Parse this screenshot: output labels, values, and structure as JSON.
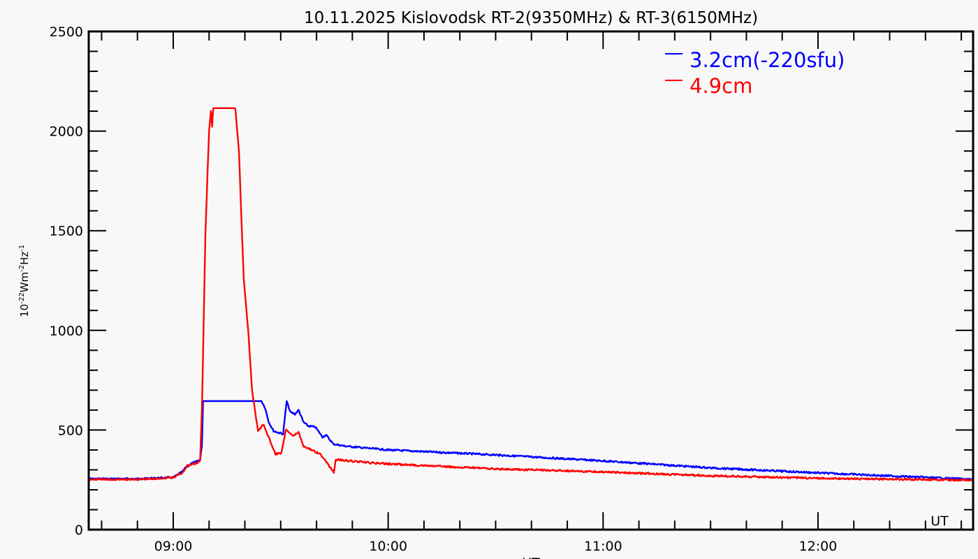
{
  "chart_data": {
    "type": "line",
    "title": "10.11.2025 Kislovodsk RT-2(9350MHz) & RT-3(6150MHz)",
    "xlabel": "UT",
    "xlabel_inner": "UT",
    "ylabel_base": "10",
    "ylabel_exp1": "-22",
    "ylabel_mid1": "Wm",
    "ylabel_exp2": "-2",
    "ylabel_mid2": "Hz",
    "ylabel_exp3": "-1",
    "xlim": [
      "08:36:24",
      "12:43:18"
    ],
    "ylim": [
      0,
      2500
    ],
    "xticks": [
      "09:00",
      "10:00",
      "11:00",
      "12:00"
    ],
    "yticks": [
      0,
      500,
      1000,
      1500,
      2000,
      2500
    ],
    "grid": false,
    "legend_placement": "top-right",
    "series": [
      {
        "name": "3.2cm(-220sfu)",
        "color": "#0000ff",
        "points": [
          [
            "08:36:24",
            255
          ],
          [
            "08:50:00",
            255
          ],
          [
            "09:00:00",
            262
          ],
          [
            "09:02:30",
            290
          ],
          [
            "09:03:30",
            312
          ],
          [
            "09:05:00",
            330
          ],
          [
            "09:06:30",
            342
          ],
          [
            "09:07:30",
            352
          ],
          [
            "09:08:00",
            420
          ],
          [
            "09:08:20",
            645
          ],
          [
            "09:24:40",
            645
          ],
          [
            "09:25:40",
            610
          ],
          [
            "09:26:40",
            540
          ],
          [
            "09:28:00",
            495
          ],
          [
            "09:29:40",
            485
          ],
          [
            "09:30:40",
            480
          ],
          [
            "09:31:40",
            645
          ],
          [
            "09:32:40",
            590
          ],
          [
            "09:34:00",
            580
          ],
          [
            "09:35:00",
            600
          ],
          [
            "09:36:20",
            540
          ],
          [
            "09:37:40",
            520
          ],
          [
            "09:39:40",
            515
          ],
          [
            "09:40:40",
            490
          ],
          [
            "09:41:40",
            465
          ],
          [
            "09:42:40",
            475
          ],
          [
            "09:44:40",
            430
          ],
          [
            "09:47:40",
            420
          ],
          [
            "09:53:30",
            410
          ],
          [
            "10:00:00",
            400
          ],
          [
            "10:30:00",
            375
          ],
          [
            "11:00:00",
            345
          ],
          [
            "11:30:00",
            310
          ],
          [
            "12:00:00",
            285
          ],
          [
            "12:43:18",
            252
          ]
        ]
      },
      {
        "name": "4.9cm",
        "color": "#ff0000",
        "points": [
          [
            "08:36:24",
            252
          ],
          [
            "08:50:00",
            252
          ],
          [
            "09:00:00",
            262
          ],
          [
            "09:02:30",
            285
          ],
          [
            "09:04:00",
            322
          ],
          [
            "09:06:30",
            332
          ],
          [
            "09:07:30",
            345
          ],
          [
            "09:08:00",
            600
          ],
          [
            "09:09:00",
            1500
          ],
          [
            "09:10:00",
            2000
          ],
          [
            "09:10:30",
            2100
          ],
          [
            "09:10:50",
            2020
          ],
          [
            "09:11:10",
            2115
          ],
          [
            "09:17:20",
            2115
          ],
          [
            "09:18:20",
            1900
          ],
          [
            "09:19:40",
            1260
          ],
          [
            "09:21:00",
            980
          ],
          [
            "09:22:00",
            700
          ],
          [
            "09:23:40",
            495
          ],
          [
            "09:25:10",
            530
          ],
          [
            "09:28:30",
            380
          ],
          [
            "09:30:10",
            385
          ],
          [
            "09:31:30",
            505
          ],
          [
            "09:33:30",
            470
          ],
          [
            "09:35:00",
            490
          ],
          [
            "09:36:20",
            420
          ],
          [
            "09:41:00",
            380
          ],
          [
            "09:44:20",
            300
          ],
          [
            "09:44:50",
            285
          ],
          [
            "09:45:20",
            352
          ],
          [
            "09:55:00",
            335
          ],
          [
            "10:00:00",
            330
          ],
          [
            "10:30:00",
            305
          ],
          [
            "11:00:00",
            290
          ],
          [
            "11:30:00",
            270
          ],
          [
            "12:00:00",
            258
          ],
          [
            "12:43:18",
            248
          ]
        ]
      }
    ]
  }
}
